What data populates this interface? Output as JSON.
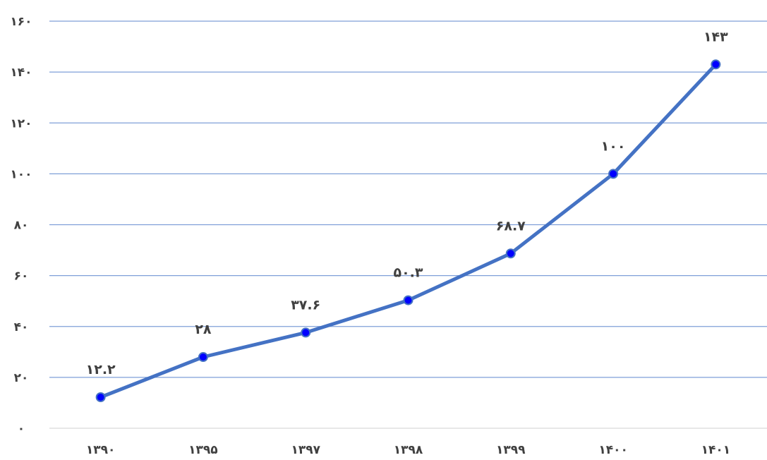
{
  "chart_data": {
    "type": "line",
    "title": "",
    "xlabel": "",
    "ylabel": "",
    "categories": [
      "۱۳۹۰",
      "۱۳۹۵",
      "۱۳۹۷",
      "۱۳۹۸",
      "۱۳۹۹",
      "۱۴۰۰",
      "۱۴۰۱"
    ],
    "values": [
      12.2,
      28,
      37.6,
      50.3,
      68.7,
      100,
      143
    ],
    "data_labels": [
      "۱۲.۲",
      "۲۸",
      "۳۷.۶",
      "۵۰.۳",
      "۶۸.۷",
      "۱۰۰",
      "۱۴۳"
    ],
    "ylim": [
      0,
      160
    ],
    "y_ticks": [
      0,
      20,
      40,
      60,
      80,
      100,
      120,
      140,
      160
    ],
    "y_tick_labels": [
      "۰",
      "۲۰",
      "۴۰",
      "۶۰",
      "۸۰",
      "۱۰۰",
      "۱۲۰",
      "۱۴۰",
      "۱۶۰"
    ],
    "grid": true,
    "legend": "none",
    "colors": {
      "line": "#4472C4",
      "marker_fill": "#0000FF",
      "gridline": "#7F9FD8",
      "baseline": "#D9D9D9",
      "text": "#404040"
    }
  }
}
